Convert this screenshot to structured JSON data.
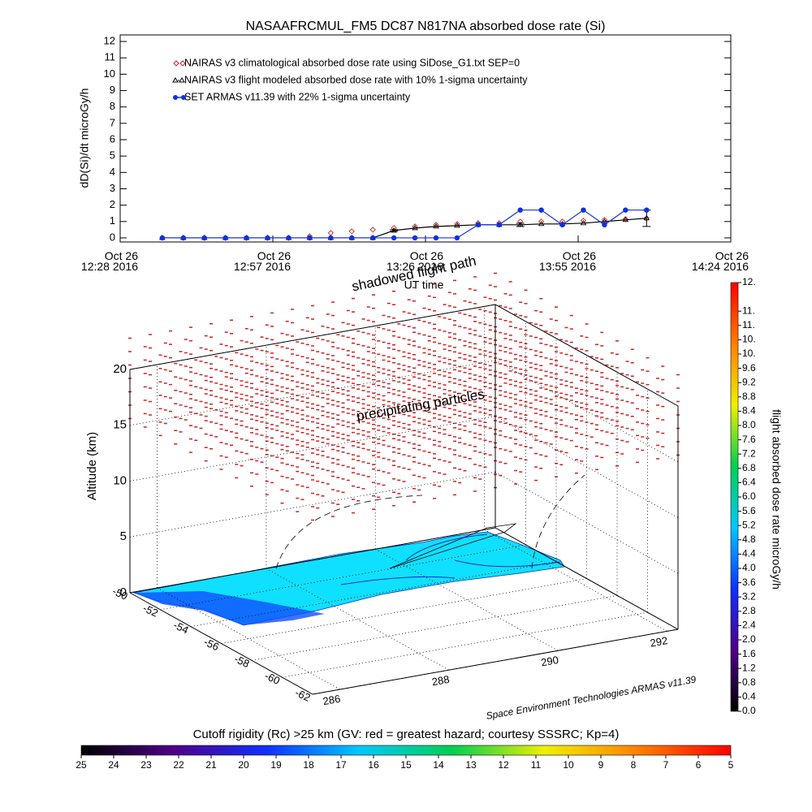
{
  "chart_data": [
    {
      "type": "line",
      "title": "NASAAFRCMUL_FM5 DC87 N817NA absorbed dose rate (Si)",
      "ylabel": "dD(Si)/dt microGy/h",
      "xlabel": "UT time",
      "xlim": [
        "2016-10-26T12:28",
        "2016-10-26T14:24"
      ],
      "xticks": [
        {
          "value": "2016-10-26T12:28",
          "label": "Oct 26\n12:28 2016"
        },
        {
          "value": "2016-10-26T12:57",
          "label": "Oct 26\n12:57 2016"
        },
        {
          "value": "2016-10-26T13:26",
          "label": "Oct 26\n13:26 2016"
        },
        {
          "value": "2016-10-26T13:55",
          "label": "Oct 26\n13:55 2016"
        },
        {
          "value": "2016-10-26T14:24",
          "label": "Oct 26\n14:24 2016"
        }
      ],
      "ylim": [
        -0.25,
        12.4
      ],
      "yticks": [
        0,
        1,
        2,
        3,
        4,
        5,
        6,
        7,
        8,
        9,
        10,
        11,
        12
      ],
      "x": [
        "2016-10-26T12:36",
        "2016-10-26T12:40",
        "2016-10-26T12:44",
        "2016-10-26T12:48",
        "2016-10-26T12:52",
        "2016-10-26T12:56",
        "2016-10-26T13:00",
        "2016-10-26T13:04",
        "2016-10-26T13:08",
        "2016-10-26T13:12",
        "2016-10-26T13:16",
        "2016-10-26T13:20",
        "2016-10-26T13:24",
        "2016-10-26T13:28",
        "2016-10-26T13:32",
        "2016-10-26T13:36",
        "2016-10-26T13:40",
        "2016-10-26T13:44",
        "2016-10-26T13:48",
        "2016-10-26T13:52",
        "2016-10-26T13:56",
        "2016-10-26T14:00",
        "2016-10-26T14:04",
        "2016-10-26T14:08"
      ],
      "series": [
        {
          "name": "NAIRAS v3 climatological absorbed dose rate using SiDose_G1.txt SEP=0",
          "color": "#d02020",
          "marker": "diamond",
          "values": [
            0,
            0,
            0,
            0,
            0,
            0,
            0,
            0.1,
            0.3,
            0.4,
            0.5,
            0.6,
            0.7,
            0.8,
            0.85,
            0.9,
            0.9,
            1.0,
            1.0,
            1.0,
            1.05,
            1.1,
            1.15,
            1.2
          ]
        },
        {
          "name": "NAIRAS v3 flight modeled absorbed dose rate with 10% 1-sigma uncertainty",
          "color": "#000000",
          "marker": "triangle",
          "values": [
            0,
            0,
            0,
            0,
            0,
            0,
            0,
            0,
            0,
            0,
            0,
            0.45,
            0.6,
            0.7,
            0.75,
            0.8,
            0.8,
            0.8,
            0.85,
            0.85,
            0.9,
            1.0,
            1.1,
            1.2
          ],
          "errors": [
            null,
            null,
            null,
            null,
            null,
            null,
            null,
            null,
            null,
            null,
            null,
            0.05,
            null,
            null,
            null,
            null,
            null,
            0.1,
            null,
            null,
            null,
            null,
            null,
            0.5
          ]
        },
        {
          "name": "SET ARMAS v11.39 with 22% 1-sigma uncertainty",
          "color": "#1030e0",
          "marker": "circle",
          "values": [
            0,
            0,
            0,
            0,
            0,
            0,
            0,
            0,
            0,
            0,
            0,
            0,
            0,
            0,
            0,
            0.8,
            0.8,
            1.7,
            1.7,
            0.8,
            1.7,
            0.8,
            1.7,
            1.7
          ]
        }
      ]
    },
    {
      "type": "surface3d",
      "zlabel": "Altitude (km)",
      "xlim": [
        -50,
        -62
      ],
      "xticks": [
        -50,
        -52,
        -54,
        -56,
        -58,
        -60,
        -62
      ],
      "ylim": [
        285.5,
        292.2
      ],
      "yticks": [
        286,
        288,
        290,
        292
      ],
      "zlim": [
        0,
        20
      ],
      "zticks": [
        0,
        5,
        10,
        15,
        20
      ],
      "annotations": [
        "shadowed flight path",
        "precipitating particles"
      ],
      "credit": "Space Environment Technologies ARMAS v11.39"
    },
    {
      "type": "colorbar",
      "orientation": "vertical",
      "label": "flight absorbed dose rate microGy/h",
      "lim": [
        0,
        12
      ],
      "colormap": [
        "#000000",
        "#50008a",
        "#1030ff",
        "#00c8ff",
        "#00d050",
        "#f0f000",
        "#ff8000",
        "#ff0000"
      ],
      "ticks": [
        {
          "value": 0,
          "label": "0.0"
        },
        {
          "value": 0.4,
          "label": "0.4"
        },
        {
          "value": 0.8,
          "label": "0.8"
        },
        {
          "value": 1.2,
          "label": "1.2"
        },
        {
          "value": 1.6,
          "label": "1.6"
        },
        {
          "value": 2,
          "label": "2.0"
        },
        {
          "value": 2.4,
          "label": "2.4"
        },
        {
          "value": 2.8,
          "label": "2.8"
        },
        {
          "value": 3.2,
          "label": "3.2"
        },
        {
          "value": 3.6,
          "label": "3.6"
        },
        {
          "value": 4,
          "label": "4.0"
        },
        {
          "value": 4.4,
          "label": "4.4"
        },
        {
          "value": 4.8,
          "label": "4.8"
        },
        {
          "value": 5.2,
          "label": "5.2"
        },
        {
          "value": 5.6,
          "label": "5.6"
        },
        {
          "value": 6,
          "label": "6.0"
        },
        {
          "value": 6.4,
          "label": "6.4"
        },
        {
          "value": 6.8,
          "label": "6.8"
        },
        {
          "value": 7.2,
          "label": "7.2"
        },
        {
          "value": 7.6,
          "label": "7.6"
        },
        {
          "value": 8,
          "label": "8.0"
        },
        {
          "value": 8.4,
          "label": "8.4"
        },
        {
          "value": 8.8,
          "label": "8.8"
        },
        {
          "value": 9.2,
          "label": "9.2"
        },
        {
          "value": 9.6,
          "label": "9.6"
        },
        {
          "value": 10.0,
          "label": "10."
        },
        {
          "value": 10.4,
          "label": "10."
        },
        {
          "value": 10.8,
          "label": "11."
        },
        {
          "value": 11.2,
          "label": "11."
        },
        {
          "value": 12,
          "label": "12."
        }
      ]
    },
    {
      "type": "colorbar",
      "orientation": "horizontal",
      "label": "Cutoff rigidity (Rc) >25 km (GV: red = greatest hazard; courtesy SSSRC; Kp=4)",
      "lim": [
        25,
        5
      ],
      "colormap": [
        "#000000",
        "#50008a",
        "#1030ff",
        "#00c8ff",
        "#00d050",
        "#f0f000",
        "#ff8000",
        "#ff0000"
      ],
      "ticks": [
        25,
        24,
        23,
        22,
        21,
        20,
        19,
        18,
        17,
        16,
        15,
        14,
        13,
        12,
        11,
        10,
        9,
        8,
        7,
        6,
        5
      ]
    }
  ]
}
